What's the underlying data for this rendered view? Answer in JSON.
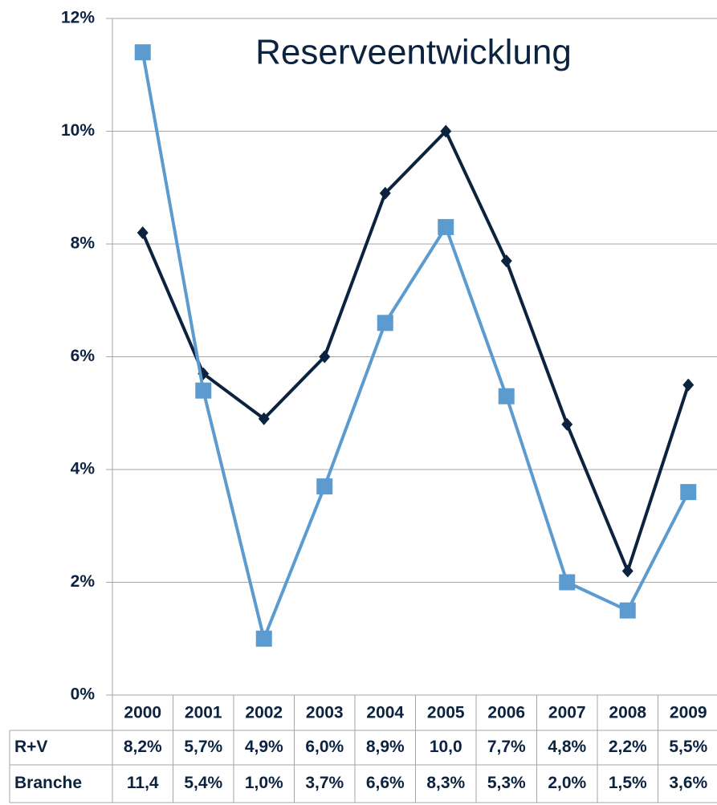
{
  "chart_data": {
    "type": "line",
    "title": "Reserveentwicklung",
    "categories": [
      "2000",
      "2001",
      "2002",
      "2003",
      "2004",
      "2005",
      "2006",
      "2007",
      "2008",
      "2009"
    ],
    "series": [
      {
        "name": "R+V",
        "color": "#0c2340",
        "marker": "diamond",
        "values": [
          8.2,
          5.7,
          4.9,
          6.0,
          8.9,
          10.0,
          7.7,
          4.8,
          2.2,
          5.5
        ],
        "value_labels": [
          "8,2%",
          "5,7%",
          "4,9%",
          "6,0%",
          "8,9%",
          "10,0",
          "7,7%",
          "4,8%",
          "2,2%",
          "5,5%"
        ]
      },
      {
        "name": "Branche",
        "color": "#5b9bd0",
        "marker": "square",
        "values": [
          11.4,
          5.4,
          1.0,
          3.7,
          6.6,
          8.3,
          5.3,
          2.0,
          1.5,
          3.6
        ],
        "value_labels": [
          "11,4",
          "5,4%",
          "1,0%",
          "3,7%",
          "6,6%",
          "8,3%",
          "5,3%",
          "2,0%",
          "1,5%",
          "3,6%"
        ]
      }
    ],
    "ylim": [
      0,
      12
    ],
    "yticks": [
      {
        "value": 0,
        "label": "0%"
      },
      {
        "value": 2,
        "label": "2%"
      },
      {
        "value": 4,
        "label": "4%"
      },
      {
        "value": 6,
        "label": "6%"
      },
      {
        "value": 8,
        "label": "8%"
      },
      {
        "value": 10,
        "label": "10%"
      },
      {
        "value": 12,
        "label": "12%"
      }
    ],
    "grid": true
  }
}
